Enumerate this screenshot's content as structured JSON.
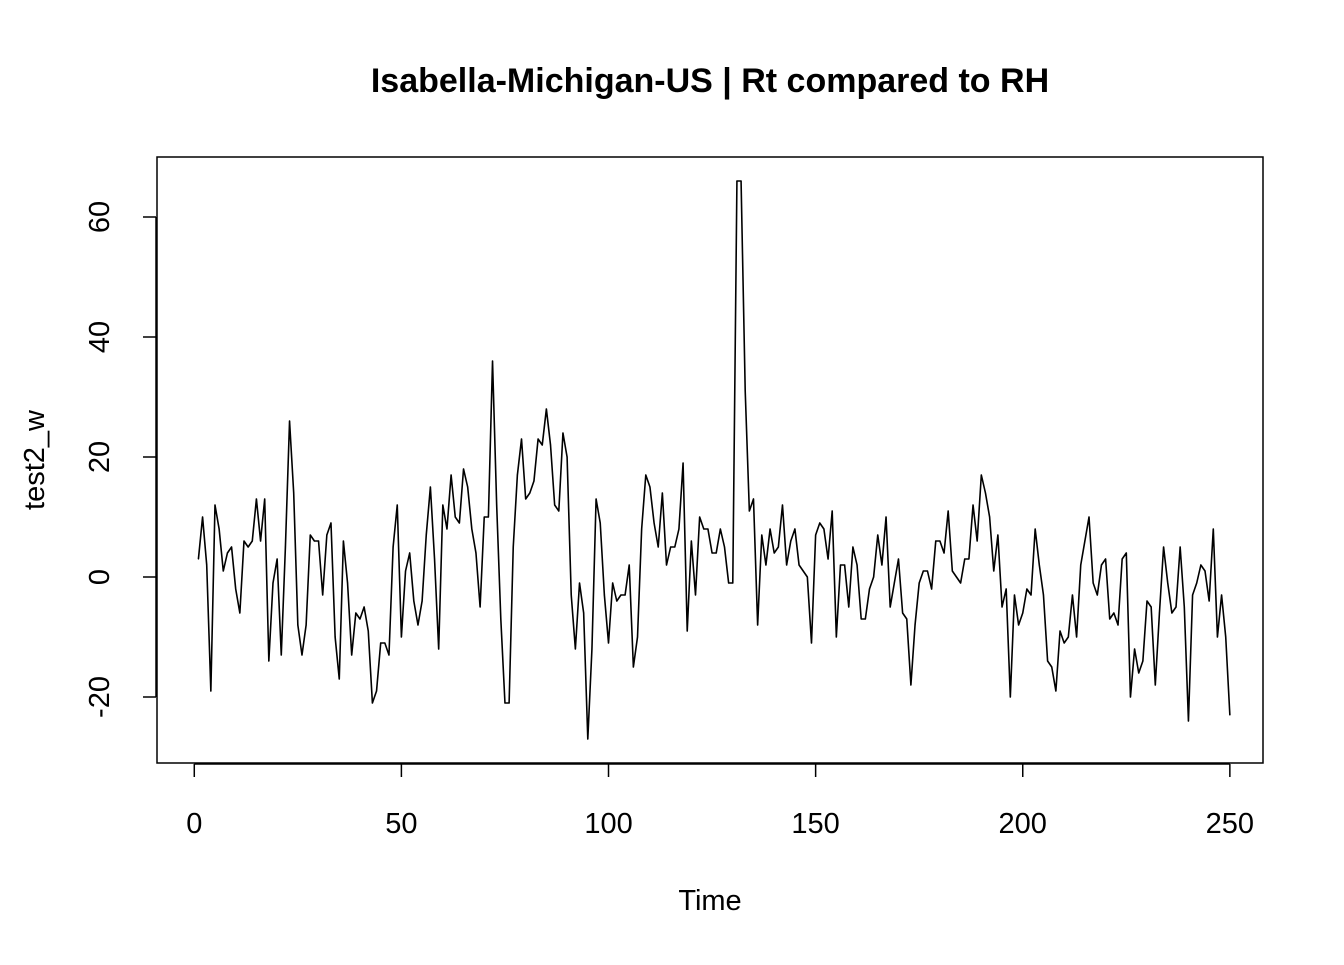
{
  "chart_data": {
    "type": "line",
    "title": "Isabella-Michigan-US | Rt compared to RH",
    "xlabel": "Time",
    "ylabel": "test2_w",
    "xlim": [
      -9,
      258
    ],
    "ylim": [
      -31,
      70
    ],
    "x_ticks": [
      0,
      50,
      100,
      150,
      200,
      250
    ],
    "x_tick_labels": [
      "0",
      "50",
      "100",
      "150",
      "200",
      "250"
    ],
    "y_ticks": [
      -20,
      0,
      20,
      40,
      60
    ],
    "y_tick_labels": [
      "-20",
      "0",
      "20",
      "40",
      "60"
    ],
    "grid": false,
    "legend": "none",
    "line_color": "#000000",
    "series": [
      {
        "x_start": 1,
        "x_step": 1,
        "values": [
          3,
          10,
          2,
          -19,
          12,
          8,
          1,
          4,
          5,
          -2,
          -6,
          6,
          5,
          6,
          13,
          6,
          13,
          -14,
          -1,
          3,
          -13,
          5,
          26,
          14,
          -8,
          -13,
          -8,
          7,
          6,
          6,
          -3,
          7,
          9,
          -10,
          -17,
          6,
          -1,
          -13,
          -6,
          -7,
          -5,
          -9,
          -21,
          -19,
          -11,
          -11,
          -13,
          5,
          12,
          -10,
          1,
          4,
          -4,
          -8,
          -4,
          7,
          15,
          3,
          -12,
          12,
          8,
          17,
          10,
          9,
          18,
          15,
          8,
          4,
          -5,
          10,
          10,
          36,
          12,
          -7,
          -21,
          -21,
          5,
          17,
          23,
          13,
          14,
          16,
          23,
          22,
          28,
          22,
          12,
          11,
          24,
          20,
          -3,
          -12,
          -1,
          -6,
          -27,
          -12,
          13,
          9,
          -3,
          -11,
          -1,
          -4,
          -3,
          -3,
          2,
          -15,
          -10,
          8,
          17,
          15,
          9,
          5,
          14,
          2,
          5,
          5,
          8,
          19,
          -9,
          6,
          -3,
          10,
          8,
          8,
          4,
          4,
          8,
          5,
          -1,
          -1,
          66,
          66,
          31,
          11,
          13,
          -8,
          7,
          2,
          8,
          4,
          5,
          12,
          2,
          6,
          8,
          2,
          1,
          0,
          -11,
          7,
          9,
          8,
          3,
          11,
          -10,
          2,
          2,
          -5,
          5,
          2,
          -7,
          -7,
          -2,
          0,
          7,
          2,
          10,
          -5,
          -1,
          3,
          -6,
          -7,
          -18,
          -8,
          -1,
          1,
          1,
          -2,
          6,
          6,
          4,
          11,
          1,
          0,
          -1,
          3,
          3,
          12,
          6,
          17,
          14,
          10,
          1,
          7,
          -5,
          -2,
          -20,
          -3,
          -8,
          -6,
          -2,
          -3,
          8,
          2,
          -3,
          -14,
          -15,
          -19,
          -9,
          -11,
          -10,
          -3,
          -10,
          2,
          6,
          10,
          -1,
          -3,
          2,
          3,
          -7,
          -6,
          -8,
          3,
          4,
          -20,
          -12,
          -16,
          -14,
          -4,
          -5,
          -18,
          -6,
          5,
          -1,
          -6,
          -5,
          5,
          -5,
          -24,
          -3,
          -1,
          2,
          1,
          -4,
          8,
          -10,
          -3,
          -10,
          -23
        ]
      }
    ]
  }
}
